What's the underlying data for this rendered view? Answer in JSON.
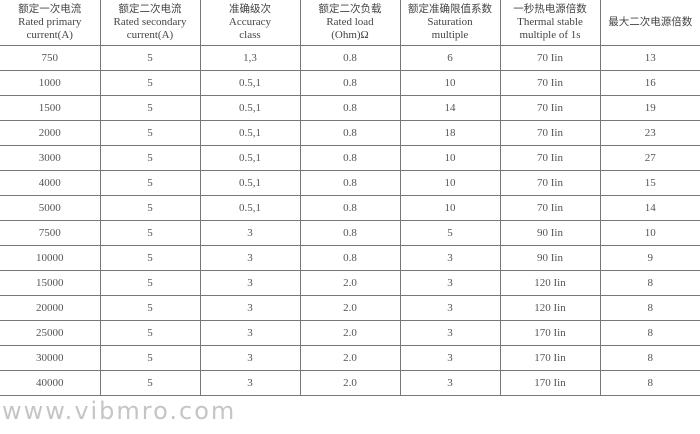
{
  "headers": [
    {
      "zh": "额定一次电流",
      "en1": "Rated primary",
      "en2": "current(A)"
    },
    {
      "zh": "额定二次电流",
      "en1": "Rated secondary",
      "en2": "current(A)"
    },
    {
      "zh": "准确级次",
      "en1": "Accuracy",
      "en2": "class"
    },
    {
      "zh": "额定二次负载",
      "en1": "Rated load",
      "en2": "(Ohm)Ω"
    },
    {
      "zh": "额定准确限值系数",
      "en1": "Saturation",
      "en2": "multiple"
    },
    {
      "zh": "一秒热电源倍数",
      "en1": "Thermal stable",
      "en2": "multiple of 1s"
    },
    {
      "zh": "最大二次电源倍数",
      "en1": "",
      "en2": ""
    }
  ],
  "rows": [
    [
      "750",
      "5",
      "1,3",
      "0.8",
      "6",
      "70 Iin",
      "13"
    ],
    [
      "1000",
      "5",
      "0.5,1",
      "0.8",
      "10",
      "70 Iin",
      "16"
    ],
    [
      "1500",
      "5",
      "0.5,1",
      "0.8",
      "14",
      "70 Iin",
      "19"
    ],
    [
      "2000",
      "5",
      "0.5,1",
      "0.8",
      "18",
      "70 Iin",
      "23"
    ],
    [
      "3000",
      "5",
      "0.5,1",
      "0.8",
      "10",
      "70 Iin",
      "27"
    ],
    [
      "4000",
      "5",
      "0.5,1",
      "0.8",
      "10",
      "70 Iin",
      "15"
    ],
    [
      "5000",
      "5",
      "0.5,1",
      "0.8",
      "10",
      "70 Iin",
      "14"
    ],
    [
      "7500",
      "5",
      "3",
      "0.8",
      "5",
      "90 Iin",
      "10"
    ],
    [
      "10000",
      "5",
      "3",
      "0.8",
      "3",
      "90 Iin",
      "9"
    ],
    [
      "15000",
      "5",
      "3",
      "2.0",
      "3",
      "120 Iin",
      "8"
    ],
    [
      "20000",
      "5",
      "3",
      "2.0",
      "3",
      "120 Iin",
      "8"
    ],
    [
      "25000",
      "5",
      "3",
      "2.0",
      "3",
      "170 Iin",
      "8"
    ],
    [
      "30000",
      "5",
      "3",
      "2.0",
      "3",
      "170 Iin",
      "8"
    ],
    [
      "40000",
      "5",
      "3",
      "2.0",
      "3",
      "170 Iin",
      "8"
    ]
  ],
  "watermark": "www.vibmro.com"
}
